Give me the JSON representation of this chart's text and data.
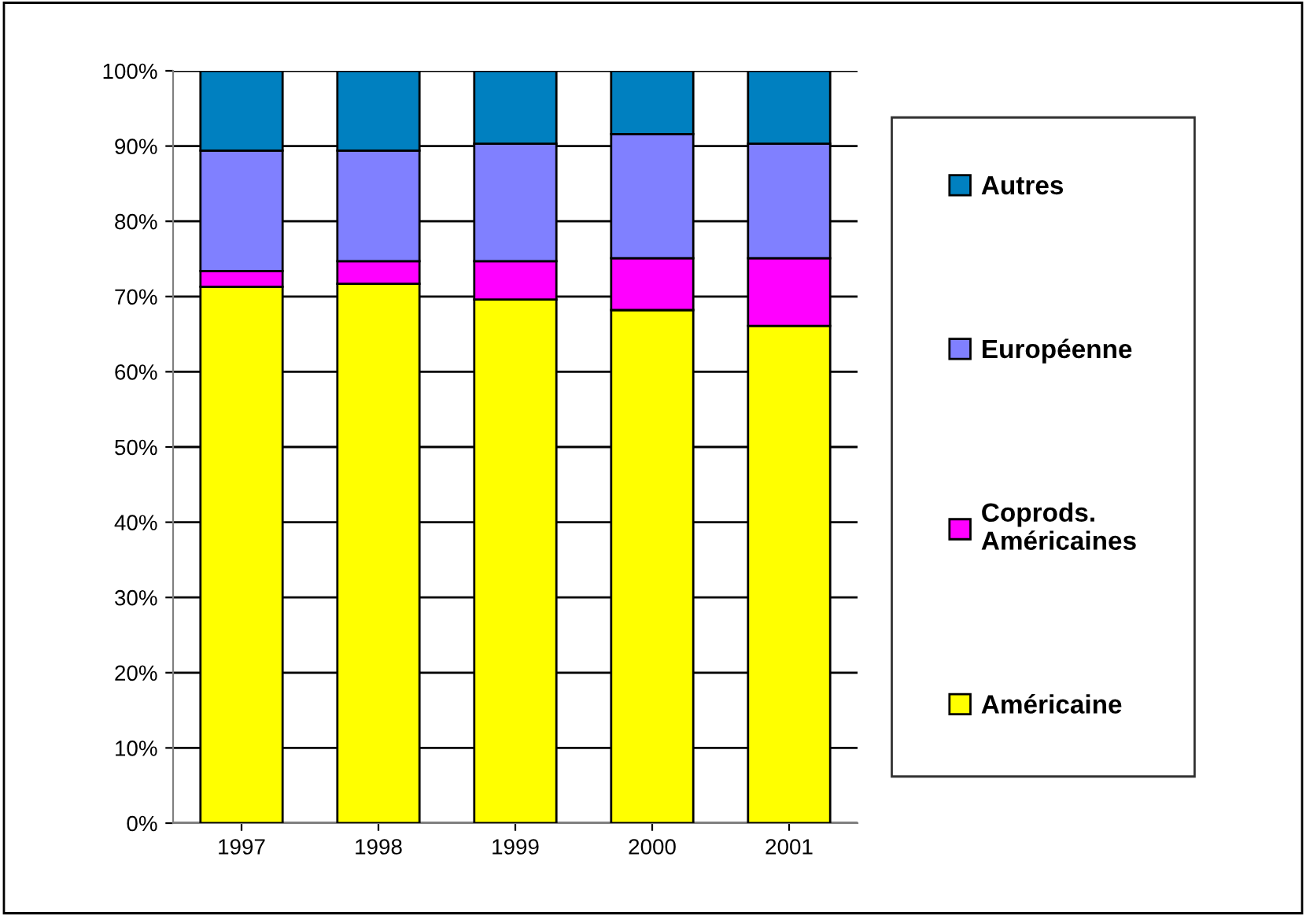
{
  "chart_data": {
    "type": "bar",
    "stacked": true,
    "categories": [
      "1997",
      "1998",
      "1999",
      "2000",
      "2001"
    ],
    "series": [
      {
        "name": "Américaine",
        "color": "#ffff00",
        "values": [
          71.3,
          71.7,
          69.6,
          68.2,
          66.1
        ]
      },
      {
        "name": "Coprods.\nAméricaines",
        "color": "#ff00ff",
        "values": [
          2.1,
          3.0,
          5.1,
          6.9,
          9.0
        ]
      },
      {
        "name": "Européenne",
        "color": "#8080ff",
        "values": [
          16.0,
          14.7,
          15.6,
          16.5,
          15.2
        ]
      },
      {
        "name": "Autres",
        "color": "#0080c0",
        "values": [
          10.6,
          10.6,
          9.7,
          8.4,
          9.7
        ]
      }
    ],
    "ylim": [
      0,
      100
    ],
    "yticks": [
      {
        "value": 0,
        "label": "0%"
      },
      {
        "value": 10,
        "label": "10%"
      },
      {
        "value": 20,
        "label": "20%"
      },
      {
        "value": 30,
        "label": "30%"
      },
      {
        "value": 40,
        "label": "40%"
      },
      {
        "value": 50,
        "label": "50%"
      },
      {
        "value": 60,
        "label": "60%"
      },
      {
        "value": 70,
        "label": "70%"
      },
      {
        "value": 80,
        "label": "80%"
      },
      {
        "value": 90,
        "label": "90%"
      },
      {
        "value": 100,
        "label": "100%"
      }
    ],
    "grid": "y",
    "legend": "right"
  }
}
